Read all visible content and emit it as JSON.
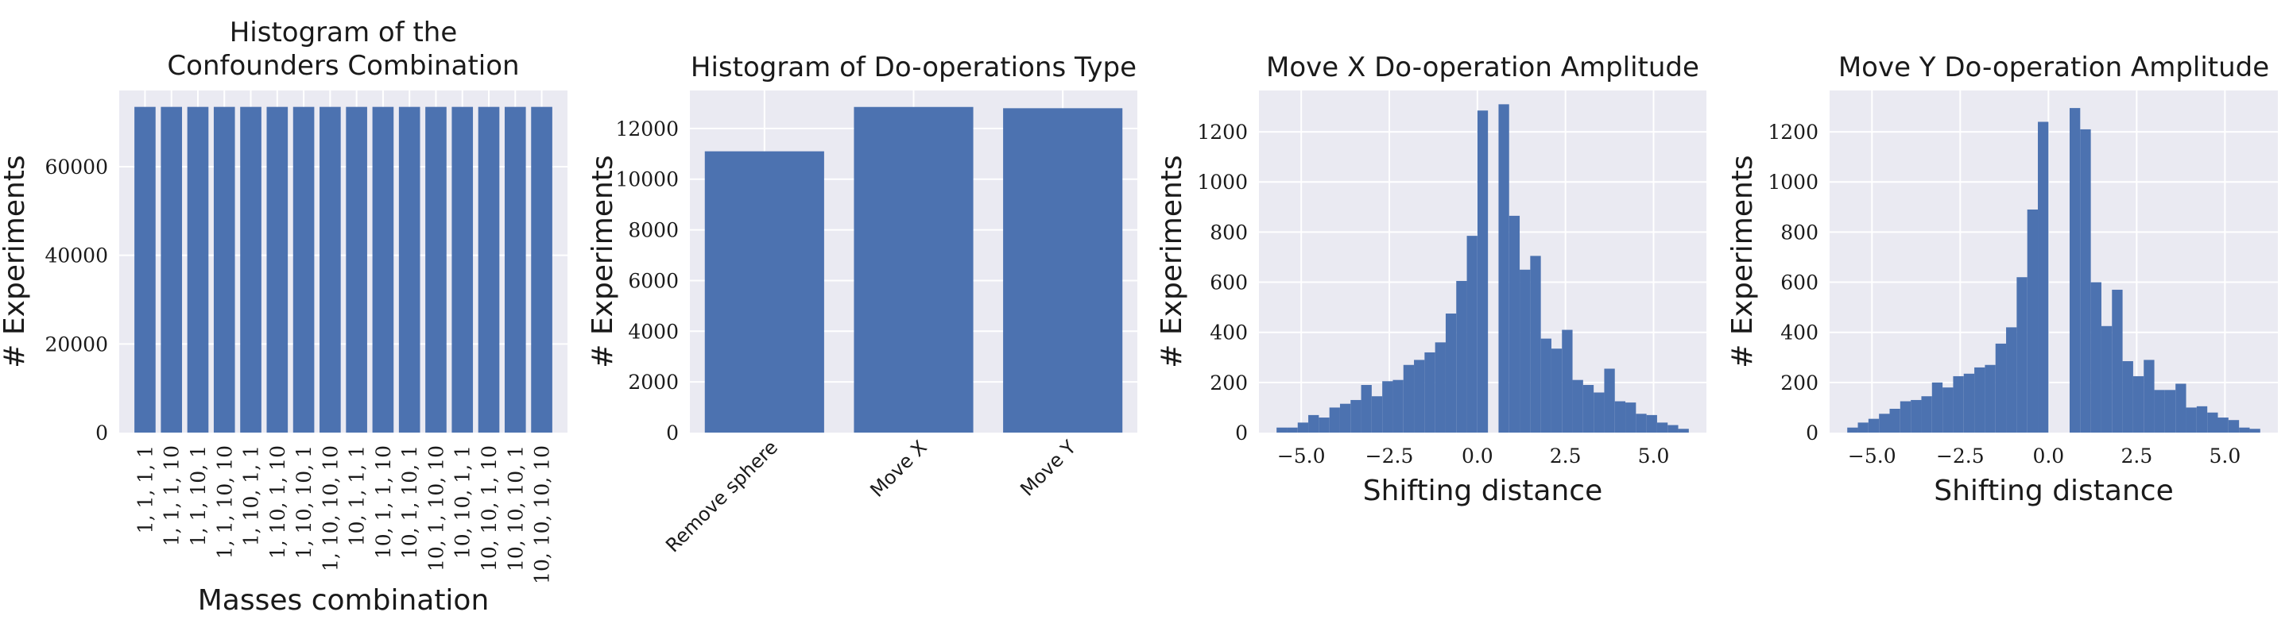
{
  "chart_data": [
    {
      "type": "bar",
      "title": [
        "Histogram of the",
        "Confounders Combination"
      ],
      "xlabel": "Masses combination",
      "ylabel": "# Experiments",
      "categories": [
        "1, 1, 1, 1",
        "1, 1, 1, 10",
        "1, 1, 10, 1",
        "1, 1, 10, 10",
        "1, 10, 1, 1",
        "1, 10, 1, 10",
        "1, 10, 10, 1",
        "1, 10, 10, 10",
        "10, 1, 1, 1",
        "10, 1, 1, 10",
        "10, 1, 10, 1",
        "10, 1, 10, 10",
        "10, 10, 1, 1",
        "10, 10, 1, 10",
        "10, 10, 10, 1",
        "10, 10, 10, 10"
      ],
      "values": [
        73500,
        73500,
        73500,
        73500,
        73500,
        73500,
        73500,
        73500,
        73500,
        73500,
        73500,
        73500,
        73500,
        73500,
        73500,
        73500
      ],
      "ylim": [
        0,
        77200
      ],
      "yticks": [
        0,
        20000,
        40000,
        60000
      ],
      "color": "#4c72b0",
      "grid": true,
      "xtick_rotation": 90
    },
    {
      "type": "bar",
      "title": [
        "Histogram of Do-operations Type"
      ],
      "xlabel": "",
      "ylabel": "# Experiments",
      "categories": [
        "Remove sphere",
        "Move X",
        "Move Y"
      ],
      "values": [
        11100,
        12850,
        12800
      ],
      "ylim": [
        0,
        13500
      ],
      "yticks": [
        0,
        2000,
        4000,
        6000,
        8000,
        10000,
        12000
      ],
      "color": "#4c72b0",
      "grid": true,
      "xtick_rotation": 45
    },
    {
      "type": "bar",
      "title": [
        "Move X Do-operation Amplitude"
      ],
      "xlabel": "Shifting distance",
      "ylabel": "# Experiments",
      "bins": [
        {
          "x0": -5.7,
          "x1": -5.4,
          "y": 20
        },
        {
          "x0": -5.4,
          "x1": -5.1,
          "y": 20
        },
        {
          "x0": -5.1,
          "x1": -4.8,
          "y": 40
        },
        {
          "x0": -4.8,
          "x1": -4.5,
          "y": 70
        },
        {
          "x0": -4.5,
          "x1": -4.2,
          "y": 60
        },
        {
          "x0": -4.2,
          "x1": -3.9,
          "y": 100
        },
        {
          "x0": -3.9,
          "x1": -3.6,
          "y": 115
        },
        {
          "x0": -3.6,
          "x1": -3.3,
          "y": 130
        },
        {
          "x0": -3.3,
          "x1": -3.0,
          "y": 190
        },
        {
          "x0": -3.0,
          "x1": -2.7,
          "y": 145
        },
        {
          "x0": -2.7,
          "x1": -2.4,
          "y": 205
        },
        {
          "x0": -2.4,
          "x1": -2.1,
          "y": 210
        },
        {
          "x0": -2.1,
          "x1": -1.8,
          "y": 270
        },
        {
          "x0": -1.8,
          "x1": -1.5,
          "y": 290
        },
        {
          "x0": -1.5,
          "x1": -1.2,
          "y": 320
        },
        {
          "x0": -1.2,
          "x1": -0.9,
          "y": 360
        },
        {
          "x0": -0.9,
          "x1": -0.6,
          "y": 475
        },
        {
          "x0": -0.6,
          "x1": -0.3,
          "y": 605
        },
        {
          "x0": -0.3,
          "x1": 0.0,
          "y": 785
        },
        {
          "x0": 0.0,
          "x1": 0.3,
          "y": 1285
        },
        {
          "x0": 0.6,
          "x1": 0.9,
          "y": 1310
        },
        {
          "x0": 0.9,
          "x1": 1.2,
          "y": 865
        },
        {
          "x0": 1.2,
          "x1": 1.5,
          "y": 650
        },
        {
          "x0": 1.5,
          "x1": 1.8,
          "y": 705
        },
        {
          "x0": 1.8,
          "x1": 2.1,
          "y": 375
        },
        {
          "x0": 2.1,
          "x1": 2.4,
          "y": 335
        },
        {
          "x0": 2.4,
          "x1": 2.7,
          "y": 410
        },
        {
          "x0": 2.7,
          "x1": 3.0,
          "y": 210
        },
        {
          "x0": 3.0,
          "x1": 3.3,
          "y": 190
        },
        {
          "x0": 3.3,
          "x1": 3.6,
          "y": 160
        },
        {
          "x0": 3.6,
          "x1": 3.9,
          "y": 255
        },
        {
          "x0": 3.9,
          "x1": 4.2,
          "y": 125
        },
        {
          "x0": 4.2,
          "x1": 4.5,
          "y": 120
        },
        {
          "x0": 4.5,
          "x1": 4.8,
          "y": 75
        },
        {
          "x0": 4.8,
          "x1": 5.1,
          "y": 70
        },
        {
          "x0": 5.1,
          "x1": 5.4,
          "y": 40
        },
        {
          "x0": 5.4,
          "x1": 5.7,
          "y": 30
        },
        {
          "x0": 5.7,
          "x1": 6.0,
          "y": 15
        }
      ],
      "xlim": [
        -6.2,
        6.5
      ],
      "ylim": [
        0,
        1365
      ],
      "xticks": [
        -5.0,
        -2.5,
        0.0,
        2.5,
        5.0
      ],
      "xtick_labels": [
        "−5.0",
        "−2.5",
        "0.0",
        "2.5",
        "5.0"
      ],
      "yticks": [
        0,
        200,
        400,
        600,
        800,
        1000,
        1200
      ],
      "color": "#4c72b0",
      "grid": true
    },
    {
      "type": "bar",
      "title": [
        "Move Y Do-operation Amplitude"
      ],
      "xlabel": "Shifting distance",
      "ylabel": "# Experiments",
      "bins": [
        {
          "x0": -5.7,
          "x1": -5.4,
          "y": 20
        },
        {
          "x0": -5.4,
          "x1": -5.1,
          "y": 40
        },
        {
          "x0": -5.1,
          "x1": -4.8,
          "y": 55
        },
        {
          "x0": -4.8,
          "x1": -4.5,
          "y": 75
        },
        {
          "x0": -4.5,
          "x1": -4.2,
          "y": 95
        },
        {
          "x0": -4.2,
          "x1": -3.9,
          "y": 125
        },
        {
          "x0": -3.9,
          "x1": -3.6,
          "y": 130
        },
        {
          "x0": -3.6,
          "x1": -3.3,
          "y": 145
        },
        {
          "x0": -3.3,
          "x1": -3.0,
          "y": 200
        },
        {
          "x0": -3.0,
          "x1": -2.7,
          "y": 180
        },
        {
          "x0": -2.7,
          "x1": -2.4,
          "y": 225
        },
        {
          "x0": -2.4,
          "x1": -2.1,
          "y": 235
        },
        {
          "x0": -2.1,
          "x1": -1.8,
          "y": 260
        },
        {
          "x0": -1.8,
          "x1": -1.5,
          "y": 270
        },
        {
          "x0": -1.5,
          "x1": -1.2,
          "y": 355
        },
        {
          "x0": -1.2,
          "x1": -0.9,
          "y": 420
        },
        {
          "x0": -0.9,
          "x1": -0.6,
          "y": 620
        },
        {
          "x0": -0.6,
          "x1": -0.3,
          "y": 890
        },
        {
          "x0": -0.3,
          "x1": 0.0,
          "y": 1240
        },
        {
          "x0": 0.6,
          "x1": 0.9,
          "y": 1295
        },
        {
          "x0": 0.9,
          "x1": 1.2,
          "y": 1210
        },
        {
          "x0": 1.2,
          "x1": 1.5,
          "y": 600
        },
        {
          "x0": 1.5,
          "x1": 1.8,
          "y": 425
        },
        {
          "x0": 1.8,
          "x1": 2.1,
          "y": 570
        },
        {
          "x0": 2.1,
          "x1": 2.4,
          "y": 285
        },
        {
          "x0": 2.4,
          "x1": 2.7,
          "y": 225
        },
        {
          "x0": 2.7,
          "x1": 3.0,
          "y": 290
        },
        {
          "x0": 3.0,
          "x1": 3.3,
          "y": 170
        },
        {
          "x0": 3.3,
          "x1": 3.6,
          "y": 170
        },
        {
          "x0": 3.6,
          "x1": 3.9,
          "y": 195
        },
        {
          "x0": 3.9,
          "x1": 4.2,
          "y": 100
        },
        {
          "x0": 4.2,
          "x1": 4.5,
          "y": 105
        },
        {
          "x0": 4.5,
          "x1": 4.8,
          "y": 80
        },
        {
          "x0": 4.8,
          "x1": 5.1,
          "y": 60
        },
        {
          "x0": 5.1,
          "x1": 5.4,
          "y": 50
        },
        {
          "x0": 5.4,
          "x1": 5.7,
          "y": 20
        },
        {
          "x0": 5.7,
          "x1": 6.0,
          "y": 15
        }
      ],
      "xlim": [
        -6.2,
        6.5
      ],
      "ylim": [
        0,
        1365
      ],
      "xticks": [
        -5.0,
        -2.5,
        0.0,
        2.5,
        5.0
      ],
      "xtick_labels": [
        "−5.0",
        "−2.5",
        "0.0",
        "2.5",
        "5.0"
      ],
      "yticks": [
        0,
        200,
        400,
        600,
        800,
        1000,
        1200
      ],
      "color": "#4c72b0",
      "grid": true
    }
  ],
  "style": {
    "axes_background": "#eaeaf2",
    "grid_color": "#ffffff",
    "text_color": "#1a1a1a"
  }
}
